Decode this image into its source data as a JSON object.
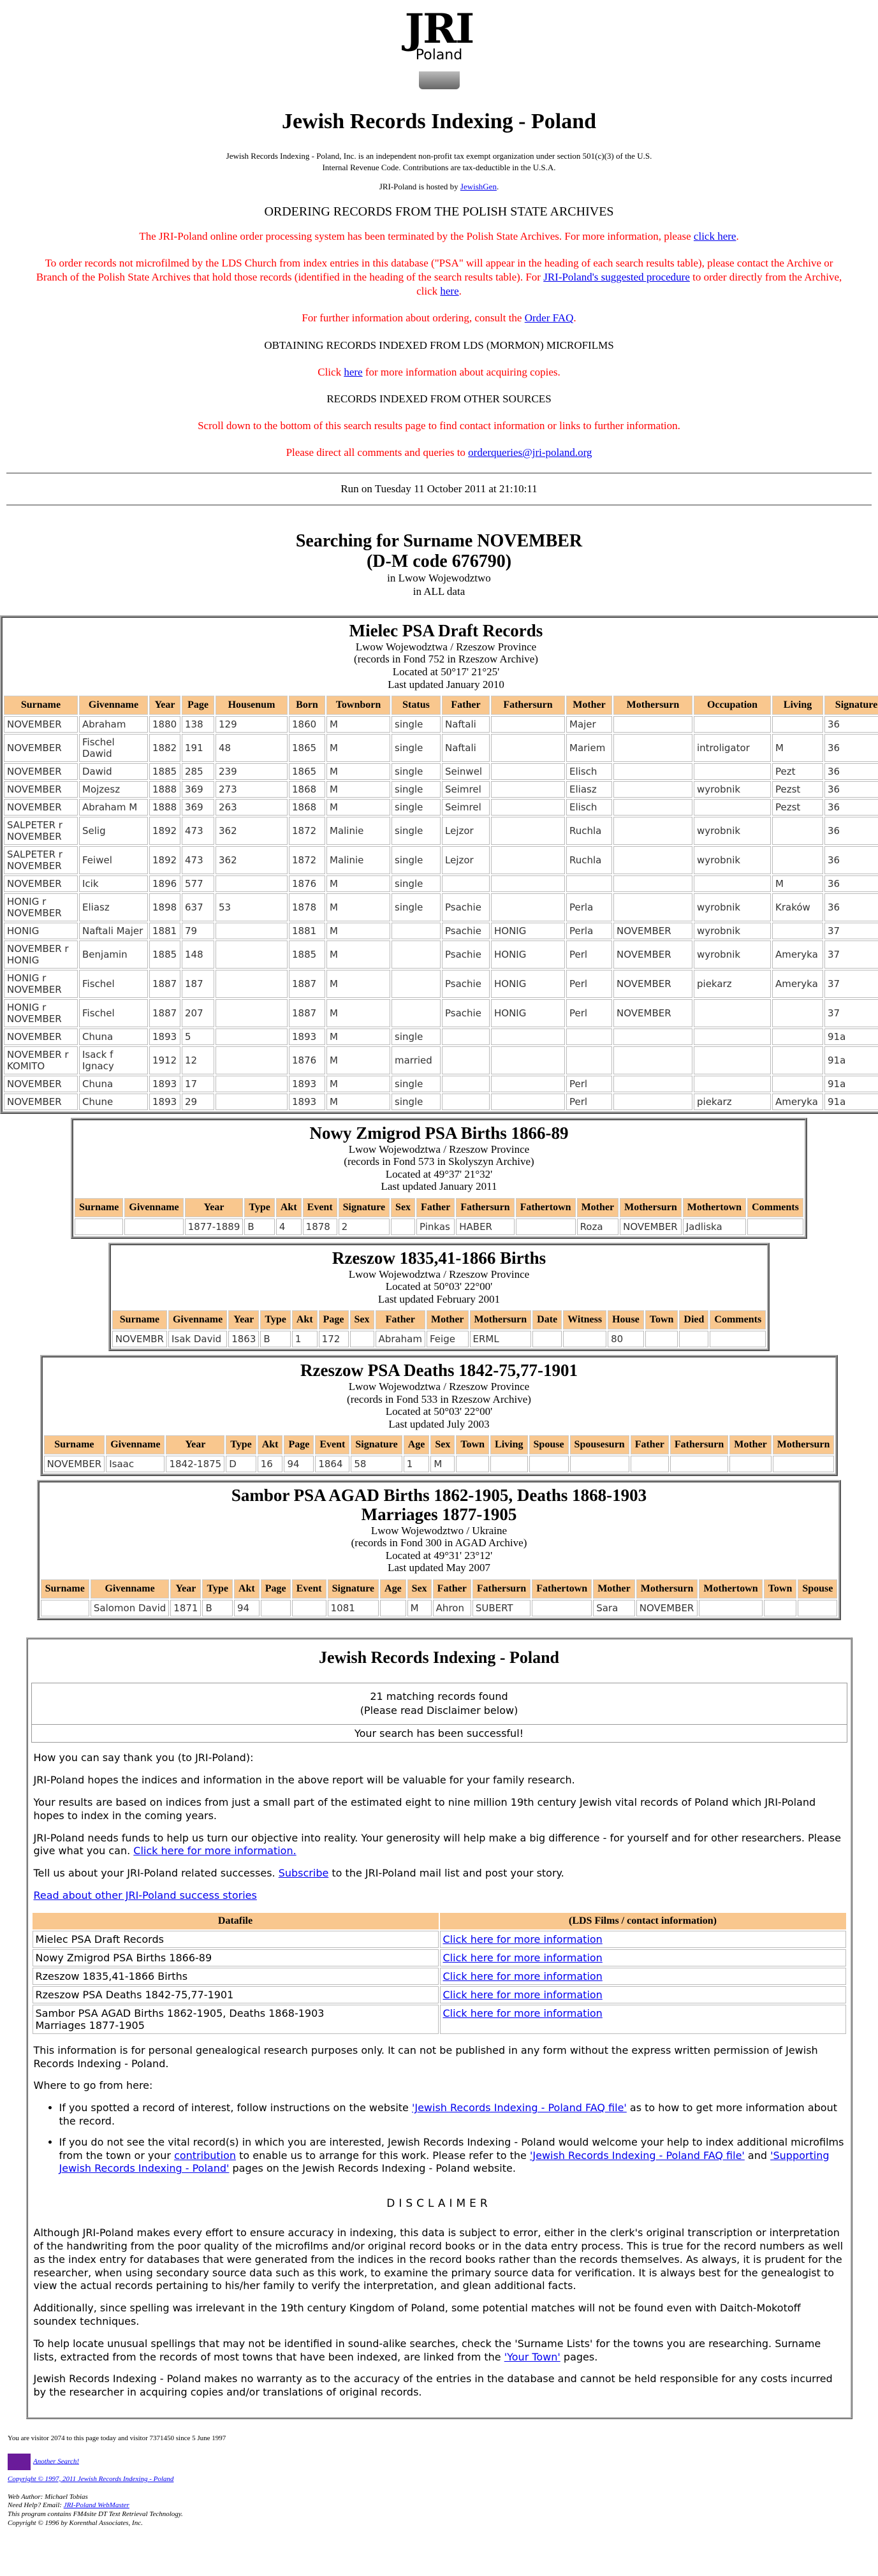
{
  "header": {
    "logo_text": "JRI",
    "logo_sub": "Poland",
    "title": "Jewish Records Indexing - Poland",
    "intro": "Jewish Records Indexing - Poland, Inc. is an independent non-profit tax exempt organization under section 501(c)(3) of the U.S. Internal Revenue Code. Contributions are tax-deductible in the U.S.A.",
    "hosted": [
      {
        "text": "JRI-Poland is hosted by "
      },
      {
        "link": "JewishGen"
      },
      {
        "text": "."
      }
    ],
    "section_title": "ORDERING RECORDS FROM THE POLISH STATE ARCHIVES"
  },
  "notices": [
    {
      "color": "red",
      "parts": [
        {
          "text": "The JRI-Poland online order processing system has been terminated by the Polish State Archives. For more information, please "
        },
        {
          "link": "click here"
        },
        {
          "text": "."
        }
      ]
    },
    {
      "color": "red",
      "parts": [
        {
          "text": "To order records not microfilmed by the LDS Church from index entries in this database (\"PSA\" will appear in the heading of each search results table), please contact the Archive or Branch of the Polish State Archives that hold those records (identified in the heading of the search results table). For "
        },
        {
          "link": "JRI-Poland's suggested procedure"
        },
        {
          "text": " to order directly from the Archive, click "
        },
        {
          "link": "here"
        },
        {
          "text": "."
        }
      ]
    },
    {
      "color": "red",
      "parts": [
        {
          "text": "For further information about ordering, consult the "
        },
        {
          "link": "Order FAQ"
        },
        {
          "text": "."
        }
      ]
    },
    {
      "color": "black",
      "parts": [
        {
          "text": "OBTAINING RECORDS INDEXED FROM LDS (MORMON) MICROFILMS"
        }
      ]
    },
    {
      "color": "red",
      "parts": [
        {
          "text": "Click "
        },
        {
          "link": "here"
        },
        {
          "text": " for more information about acquiring copies."
        }
      ]
    },
    {
      "color": "black",
      "parts": [
        {
          "text": "RECORDS INDEXED FROM OTHER SOURCES"
        }
      ]
    },
    {
      "color": "red",
      "parts": [
        {
          "text": "Scroll down to the bottom of this search results page to find contact information or links to further information."
        }
      ]
    },
    {
      "color": "red",
      "parts": [
        {
          "text": "Please direct all comments and queries to "
        },
        {
          "link": "orderqueries@jri-poland.org"
        }
      ]
    }
  ],
  "run_on": "Run on Tuesday 11 October 2011 at 21:10:11",
  "search": {
    "title": "Searching for Surname NOVEMBER",
    "code": "(D-M code 676790)",
    "region": "in Lwow Wojewodztwo",
    "scope": "in ALL data"
  },
  "tables": [
    {
      "title": "Mielec PSA Draft Records",
      "subtitle": [
        "Lwow Wojewodztwa / Rzeszow Province",
        "(records in Fond 752 in Rzeszow Archive)",
        "Located at 50°17' 21°25'",
        "Last updated January 2010"
      ],
      "columns": [
        "Surname",
        "Givenname",
        "Year",
        "Page",
        "Housenum",
        "Born",
        "Townborn",
        "Status",
        "Father",
        "Fathersurn",
        "Mother",
        "Mothersurn",
        "Occupation",
        "Living",
        "Signature"
      ],
      "rows": [
        [
          "NOVEMBER",
          "Abraham",
          1880,
          138,
          129,
          1860,
          "M",
          "single",
          "Naftali",
          null,
          "Majer",
          null,
          null,
          null,
          36
        ],
        [
          "NOVEMBER",
          "Fischel Dawid",
          1882,
          191,
          48,
          1865,
          "M",
          "single",
          "Naftali",
          null,
          "Mariem",
          null,
          "introligator",
          "M",
          36
        ],
        [
          "NOVEMBER",
          "Dawid",
          1885,
          285,
          239,
          1865,
          "M",
          "single",
          "Seinwel",
          null,
          "Elisch",
          null,
          null,
          "Pezt",
          36
        ],
        [
          "NOVEMBER",
          "Mojzesz",
          1888,
          369,
          273,
          1868,
          "M",
          "single",
          "Seimrel",
          null,
          "Eliasz",
          null,
          "wyrobnik",
          "Pezst",
          36
        ],
        [
          "NOVEMBER",
          "Abraham M",
          1888,
          369,
          263,
          1868,
          "M",
          "single",
          "Seimrel",
          null,
          "Elisch",
          null,
          null,
          "Pezst",
          36
        ],
        [
          "SALPETER r NOVEMBER",
          "Selig",
          1892,
          473,
          362,
          1872,
          "Malinie",
          "single",
          "Lejzor",
          null,
          "Ruchla",
          null,
          "wyrobnik",
          null,
          36
        ],
        [
          "SALPETER r NOVEMBER",
          "Feiwel",
          1892,
          473,
          362,
          1872,
          "Malinie",
          "single",
          "Lejzor",
          null,
          "Ruchla",
          null,
          "wyrobnik",
          null,
          36
        ],
        [
          "NOVEMBER",
          "Icik",
          1896,
          577,
          null,
          1876,
          "M",
          "single",
          null,
          null,
          null,
          null,
          null,
          "M",
          36
        ],
        [
          "HONIG r NOVEMBER",
          "Eliasz",
          1898,
          637,
          53,
          1878,
          "M",
          "single",
          "Psachie",
          null,
          "Perla",
          null,
          "wyrobnik",
          "Kraków",
          36
        ],
        [
          "HONIG",
          "Naftali Majer",
          1881,
          79,
          null,
          1881,
          "M",
          null,
          "Psachie",
          "HONIG",
          "Perla",
          "NOVEMBER",
          "wyrobnik",
          null,
          37
        ],
        [
          "NOVEMBER r HONIG",
          "Benjamin",
          1885,
          148,
          null,
          1885,
          "M",
          null,
          "Psachie",
          "HONIG",
          "Perl",
          "NOVEMBER",
          "wyrobnik",
          "Ameryka",
          37
        ],
        [
          "HONIG r NOVEMBER",
          "Fischel",
          1887,
          187,
          null,
          1887,
          "M",
          null,
          "Psachie",
          "HONIG",
          "Perl",
          "NOVEMBER",
          "piekarz",
          "Ameryka",
          37
        ],
        [
          "HONIG r NOVEMBER",
          "Fischel",
          1887,
          207,
          null,
          1887,
          "M",
          null,
          "Psachie",
          "HONIG",
          "Perl",
          "NOVEMBER",
          null,
          null,
          37
        ],
        [
          "NOVEMBER",
          "Chuna",
          1893,
          5,
          null,
          1893,
          "M",
          "single",
          null,
          null,
          null,
          null,
          null,
          null,
          "91a"
        ],
        [
          "NOVEMBER r KOMITO",
          "Isack f Ignacy",
          1912,
          12,
          null,
          1876,
          "M",
          "married",
          null,
          null,
          null,
          null,
          null,
          null,
          "91a"
        ],
        [
          "NOVEMBER",
          "Chuna",
          1893,
          17,
          null,
          1893,
          "M",
          "single",
          null,
          null,
          "Perl",
          null,
          null,
          null,
          "91a"
        ],
        [
          "NOVEMBER",
          "Chune",
          1893,
          29,
          null,
          1893,
          "M",
          "single",
          null,
          null,
          "Perl",
          null,
          "piekarz",
          "Ameryka",
          "91a"
        ]
      ]
    },
    {
      "title": "Nowy Zmigrod PSA Births 1866-89",
      "subtitle": [
        "Lwow Wojewodztwa / Rzeszow Province",
        "(records in Fond 573 in Skolyszyn Archive)",
        "Located at 49°37' 21°32'",
        "Last updated January 2011"
      ],
      "columns": [
        "Surname",
        "Givenname",
        "Year",
        "Type",
        "Akt",
        "Event",
        "Signature",
        "Sex",
        "Father",
        "Fathersurn",
        "Fathertown",
        "Mother",
        "Mothersurn",
        "Mothertown",
        "Comments"
      ],
      "rows": [
        [
          null,
          null,
          "1877-1889",
          "B",
          4,
          1878,
          2,
          null,
          "Pinkas",
          "HABER",
          null,
          "Roza",
          "NOVEMBER",
          "Jadliska",
          null
        ]
      ]
    },
    {
      "title": "Rzeszow 1835,41-1866 Births",
      "subtitle": [
        "Lwow Wojewodztwa / Rzeszow Province",
        "Located at 50°03' 22°00'",
        "Last updated February 2001"
      ],
      "columns": [
        "Surname",
        "Givenname",
        "Year",
        "Type",
        "Akt",
        "Page",
        "Sex",
        "Father",
        "Mother",
        "Mothersurn",
        "Date",
        "Witness",
        "House",
        "Town",
        "Died",
        "Comments"
      ],
      "rows": [
        [
          "NOVEMBR",
          "Isak David",
          1863,
          "B",
          1,
          172,
          null,
          "Abraham",
          "Feige",
          "ERML",
          null,
          null,
          80,
          null,
          null,
          null
        ]
      ]
    },
    {
      "title": "Rzeszow PSA Deaths 1842-75,77-1901",
      "subtitle": [
        "Lwow Wojewodztwa / Rzeszow Province",
        "(records in Fond 533 in Rzeszow Archive)",
        "Located at 50°03' 22°00'",
        "Last updated July 2003"
      ],
      "columns": [
        "Surname",
        "Givenname",
        "Year",
        "Type",
        "Akt",
        "Page",
        "Event",
        "Signature",
        "Age",
        "Sex",
        "Town",
        "Living",
        "Spouse",
        "Spousesurn",
        "Father",
        "Fathersurn",
        "Mother",
        "Mothersurn"
      ],
      "rows": [
        [
          "NOVEMBER",
          "Isaac",
          "1842-1875",
          "D",
          16,
          94,
          1864,
          58,
          1,
          "M",
          null,
          null,
          null,
          null,
          null,
          null,
          null,
          null
        ]
      ]
    },
    {
      "title": "Sambor PSA AGAD Births 1862-1905, Deaths 1868-1903\nMarriages 1877-1905",
      "subtitle": [
        "Lwow Wojewodztwo / Ukraine",
        "(records in Fond 300 in AGAD Archive)",
        "Located at 49°31' 23°12'",
        "Last updated May 2007"
      ],
      "columns": [
        "Surname",
        "Givenname",
        "Year",
        "Type",
        "Akt",
        "Page",
        "Event",
        "Signature",
        "Age",
        "Sex",
        "Father",
        "Fathersurn",
        "Fathertown",
        "Mother",
        "Mothersurn",
        "Mothertown",
        "Town",
        "Spouse"
      ],
      "rows": [
        [
          null,
          "Salomon David",
          1871,
          "B",
          94,
          null,
          null,
          1081,
          null,
          "M",
          "Ahron",
          "SUBERT",
          null,
          "Sara",
          "NOVEMBER",
          null,
          null,
          null
        ]
      ]
    }
  ],
  "summary": {
    "title": "Jewish Records Indexing - Poland",
    "count": "21 matching records found",
    "note": "(Please read Disclaimer below)",
    "success": "Your search has been successful!",
    "thanks": [
      [
        {
          "text": "How you can say thank you (to JRI-Poland):"
        }
      ],
      [
        {
          "text": "JRI-Poland hopes the indices and information in the above report will be valuable for your family research."
        }
      ],
      [
        {
          "text": "Your results are based on indices from just a small part of the estimated eight to nine million 19th century Jewish vital records of Poland which JRI-Poland hopes to index in the coming years."
        }
      ],
      [
        {
          "text": "JRI-Poland needs funds to help us turn our objective into reality. Your generosity will help make a big difference - for yourself and for other researchers. Please give what you can. "
        },
        {
          "link": "Click here for more information."
        }
      ],
      [
        {
          "text": "Tell us about your JRI-Poland related successes. "
        },
        {
          "link": "Subscribe"
        },
        {
          "text": " to the JRI-Poland mail list and post your story."
        }
      ],
      [
        {
          "link": "Read about other JRI-Poland success stories"
        }
      ]
    ],
    "files_header": [
      "Datafile",
      "(LDS Films / contact information)"
    ],
    "files": [
      [
        "Mielec PSA Draft Records",
        "Click here for more information"
      ],
      [
        "Nowy Zmigrod PSA Births 1866-89",
        "Click here for more information"
      ],
      [
        "Rzeszow 1835,41-1866 Births",
        "Click here for more information"
      ],
      [
        "Rzeszow PSA Deaths 1842-75,77-1901",
        "Click here for more information"
      ],
      [
        "Sambor PSA AGAD Births 1862-1905, Deaths 1868-1903\nMarriages 1877-1905",
        "Click here for more information"
      ]
    ],
    "permission": "This information is for personal genealogical research purposes only. It can not be published in any form without the express written permission of Jewish Records Indexing - Poland.",
    "where": "Where to go from here:",
    "bullets": [
      [
        {
          "text": "If you spotted a record of interest, follow instructions on the website "
        },
        {
          "link": "'Jewish Records Indexing - Poland FAQ file'"
        },
        {
          "text": " as to how to get more information about the record."
        }
      ],
      [
        {
          "text": "If you do not see the vital record(s) in which you are interested, Jewish Records Indexing - Poland would welcome your help to index additional microfilms from the town or your "
        },
        {
          "link": "contribution"
        },
        {
          "text": " to enable us to arrange for this work. Please refer to the "
        },
        {
          "link": "'Jewish Records Indexing - Poland FAQ file'"
        },
        {
          "text": " and "
        },
        {
          "link": "'Supporting Jewish Records Indexing - Poland'"
        },
        {
          "text": " pages on the Jewish Records Indexing - Poland website."
        }
      ]
    ],
    "disclaimer_title": "DISCLAIMER",
    "disclaimer": [
      [
        {
          "text": "Although JRI-Poland makes every effort to ensure accuracy in indexing, this data is subject to error, either in the clerk's original transcription or interpretation of the handwriting from the poor quality of the microfilms and/or original record books or in the data entry process. This is true for the record numbers as well as the index entry for databases that were generated from the indices in the record books rather than the records themselves. As always, it is prudent for the researcher, when using secondary source data such as this work, to examine the primary source data for verification. It is always best for the genealogist to view the actual records pertaining to his/her family to verify the interpretation, and glean additional facts."
        }
      ],
      [
        {
          "text": "Additionally, since spelling was irrelevant in the 19th century Kingdom of Poland, some potential matches will not be found even with Daitch-Mokotoff soundex techniques."
        }
      ],
      [
        {
          "text": "To help locate unusual spellings that may not be identified in sound-alike searches, check the 'Surname Lists' for the towns you are researching. Surname lists, extracted from the records of most towns that have been indexed, are linked from the "
        },
        {
          "link": "'Your Town'"
        },
        {
          "text": " pages."
        }
      ],
      [
        {
          "text": "Jewish Records Indexing - Poland makes no warranty as to the accuracy of the entries in the database and cannot be held responsible for any costs incurred by the researcher in acquiring copies and/or translations of original records."
        }
      ]
    ]
  },
  "footer": {
    "visitors": "You are visitor 2074 to this page today and visitor 7371450 since 5 June 1997",
    "another": [
      {
        "link": "Another Search!"
      }
    ],
    "copyright": [
      {
        "link": "Copyright © 1997, 2011 Jewish Records Indexing - Poland"
      }
    ],
    "credits": [
      [
        {
          "text": "Web Author: Michael Tobias"
        }
      ],
      [
        {
          "text": "Need Help? Email: "
        },
        {
          "link": "JRI-Poland WebMaster"
        }
      ],
      [
        {
          "text": "This program contains FM4site DT Text Retrieval Technology."
        }
      ],
      [
        {
          "text": "Copyright © 1996 by Korenthal Associates, Inc."
        }
      ]
    ]
  }
}
